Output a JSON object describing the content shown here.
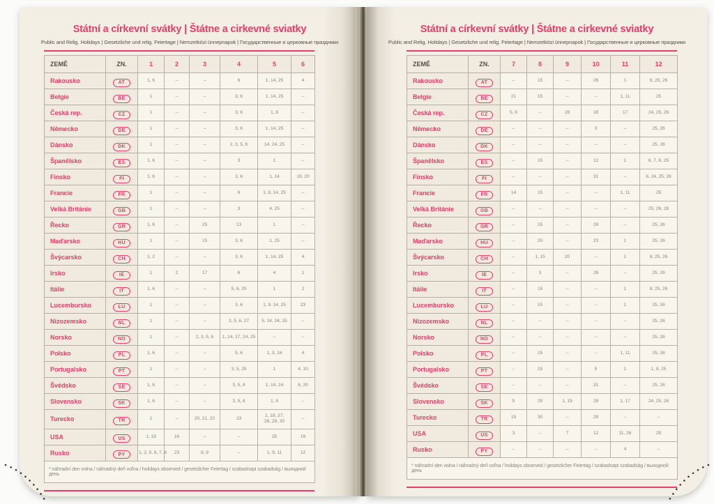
{
  "title": "Státní a církevní svátky | Štátne a cirkevné sviatky",
  "subtitle": "Public and Relig. Holidays | Gesetzliche und relig. Feiertage | Nemzetközi ünnepnapok | Государственные и церковные праздники",
  "footnote": "* náhradní den volna / náhradný deň voľna / holidays observed / gesetzlicher Feiertag / szabadnapi szabadság / выходной день",
  "pages": [
    {
      "side": "left",
      "columns": [
        "ZEMĚ",
        "ZN.",
        "1",
        "2",
        "3",
        "4",
        "5",
        "6"
      ]
    },
    {
      "side": "right",
      "columns": [
        "ZEMĚ",
        "ZN.",
        "7",
        "8",
        "9",
        "10",
        "11",
        "12"
      ]
    }
  ],
  "countries": [
    {
      "name": "Rakousko",
      "code": "AT",
      "left": [
        "1, 6",
        "–",
        "–",
        "6",
        "1, 14, 25",
        "4"
      ],
      "right": [
        "–",
        "15",
        "–",
        "26",
        "1",
        "8, 25, 26"
      ]
    },
    {
      "name": "Belgie",
      "code": "BE",
      "left": [
        "1",
        "–",
        "–",
        "3, 6",
        "1, 14, 25",
        "–"
      ],
      "right": [
        "21",
        "15",
        "–",
        "–",
        "1, 11",
        "25"
      ]
    },
    {
      "name": "Česká rep.",
      "code": "CZ",
      "left": [
        "1",
        "–",
        "–",
        "3, 6",
        "1, 8",
        "–"
      ],
      "right": [
        "5, 6",
        "–",
        "28",
        "28",
        "17",
        "24, 25, 26"
      ]
    },
    {
      "name": "Německo",
      "code": "DE",
      "left": [
        "1",
        "–",
        "–",
        "3, 6",
        "1, 14, 25",
        "–"
      ],
      "right": [
        "–",
        "–",
        "–",
        "3",
        "–",
        "25, 26"
      ]
    },
    {
      "name": "Dánsko",
      "code": "DK",
      "left": [
        "1",
        "–",
        "–",
        "2, 3, 5, 6",
        "14, 24, 25",
        "–"
      ],
      "right": [
        "–",
        "–",
        "–",
        "–",
        "–",
        "25, 26"
      ]
    },
    {
      "name": "Španělsko",
      "code": "ES",
      "left": [
        "1, 6",
        "–",
        "–",
        "3",
        "1",
        "–"
      ],
      "right": [
        "–",
        "15",
        "–",
        "12",
        "1",
        "6, 7, 8, 25"
      ]
    },
    {
      "name": "Finsko",
      "code": "FI",
      "left": [
        "1, 6",
        "–",
        "–",
        "3, 6",
        "1, 14",
        "19, 20"
      ],
      "right": [
        "–",
        "–",
        "–",
        "31",
        "–",
        "6, 24, 25, 26"
      ]
    },
    {
      "name": "Francie",
      "code": "FR",
      "left": [
        "1",
        "–",
        "–",
        "6",
        "1, 8, 14, 25",
        "–"
      ],
      "right": [
        "14",
        "15",
        "–",
        "–",
        "1, 11",
        "25"
      ]
    },
    {
      "name": "Velká Británie",
      "code": "GB",
      "left": [
        "1",
        "–",
        "–",
        "3",
        "4, 25",
        "–"
      ],
      "right": [
        "–",
        "–",
        "–",
        "–",
        "–",
        "25, 26, 28"
      ]
    },
    {
      "name": "Řecko",
      "code": "GR",
      "left": [
        "1, 6",
        "–",
        "25",
        "13",
        "1",
        "–"
      ],
      "right": [
        "–",
        "15",
        "–",
        "28",
        "–",
        "25, 26"
      ]
    },
    {
      "name": "Maďarsko",
      "code": "HU",
      "left": [
        "1",
        "–",
        "15",
        "3, 6",
        "1, 25",
        "–"
      ],
      "right": [
        "–",
        "20",
        "–",
        "23",
        "1",
        "25, 26"
      ]
    },
    {
      "name": "Švýcarsko",
      "code": "CH",
      "left": [
        "1, 2",
        "–",
        "–",
        "3, 6",
        "1, 14, 25",
        "4"
      ],
      "right": [
        "–",
        "1, 15",
        "20",
        "–",
        "1",
        "8, 25, 26"
      ]
    },
    {
      "name": "Irsko",
      "code": "IE",
      "left": [
        "1",
        "2",
        "17",
        "6",
        "4",
        "1"
      ],
      "right": [
        "–",
        "3",
        "–",
        "26",
        "–",
        "25, 26"
      ]
    },
    {
      "name": "Itálie",
      "code": "IT",
      "left": [
        "1, 6",
        "–",
        "–",
        "5, 6, 25",
        "1",
        "2"
      ],
      "right": [
        "–",
        "15",
        "–",
        "–",
        "1",
        "8, 25, 26"
      ]
    },
    {
      "name": "Lucembursko",
      "code": "LU",
      "left": [
        "1",
        "–",
        "–",
        "3, 6",
        "1, 9, 14, 25",
        "23"
      ],
      "right": [
        "–",
        "15",
        "–",
        "–",
        "1",
        "25, 26"
      ]
    },
    {
      "name": "Nizozemsko",
      "code": "NL",
      "left": [
        "1",
        "–",
        "–",
        "3, 5, 6, 27",
        "5, 14, 24, 25",
        "–"
      ],
      "right": [
        "–",
        "–",
        "–",
        "–",
        "–",
        "25, 26"
      ]
    },
    {
      "name": "Norsko",
      "code": "NO",
      "left": [
        "1",
        "–",
        "2, 3, 5, 6",
        "1, 14, 17, 24, 25",
        "–",
        "–"
      ],
      "right": [
        "–",
        "–",
        "–",
        "–",
        "–",
        "25, 26"
      ]
    },
    {
      "name": "Polsko",
      "code": "PL",
      "left": [
        "1, 6",
        "–",
        "–",
        "5, 6",
        "1, 3, 24",
        "4"
      ],
      "right": [
        "–",
        "15",
        "–",
        "–",
        "1, 11",
        "25, 26"
      ]
    },
    {
      "name": "Portugalsko",
      "code": "PT",
      "left": [
        "1",
        "–",
        "–",
        "3, 5, 25",
        "1",
        "4, 10"
      ],
      "right": [
        "–",
        "15",
        "–",
        "5",
        "1",
        "1, 8, 25"
      ]
    },
    {
      "name": "Švédsko",
      "code": "SE",
      "left": [
        "1, 6",
        "–",
        "–",
        "3, 5, 6",
        "1, 14, 24",
        "6, 20"
      ],
      "right": [
        "–",
        "–",
        "–",
        "31",
        "–",
        "25, 26"
      ]
    },
    {
      "name": "Slovensko",
      "code": "SK",
      "left": [
        "1, 6",
        "–",
        "–",
        "3, 5, 6",
        "1, 8",
        "–"
      ],
      "right": [
        "5",
        "29",
        "1, 15",
        "28",
        "1, 17",
        "24, 25, 26"
      ]
    },
    {
      "name": "Turecko",
      "code": "TR",
      "left": [
        "1",
        "–",
        "20, 21, 22",
        "23",
        "1, 19, 27,\n28, 29, 30",
        "–"
      ],
      "right": [
        "15",
        "30",
        "–",
        "29",
        "–",
        "–"
      ]
    },
    {
      "name": "USA",
      "code": "US",
      "left": [
        "1, 19",
        "16",
        "–",
        "–",
        "25",
        "19"
      ],
      "right": [
        "3",
        "–",
        "7",
        "12",
        "11, 26",
        "25"
      ]
    },
    {
      "name": "Rusko",
      "code": "PY",
      "left": [
        "1, 2, 5, 6, 7, 8",
        "23",
        "8, 9",
        "–",
        "1, 9, 11",
        "12"
      ],
      "right": [
        "–",
        "–",
        "–",
        "–",
        "4",
        "–"
      ]
    }
  ],
  "colors": {
    "accent_pink": "#e53e6e",
    "value_grey": "#8b867c",
    "header_grey": "#514c46",
    "page_cream": "#f4efe4",
    "cell_light": "#f8f5ec",
    "cell_dark": "#f1ebdf",
    "grid_border": "#b6b0a4",
    "perforation_dot": "#3d3d3d"
  }
}
